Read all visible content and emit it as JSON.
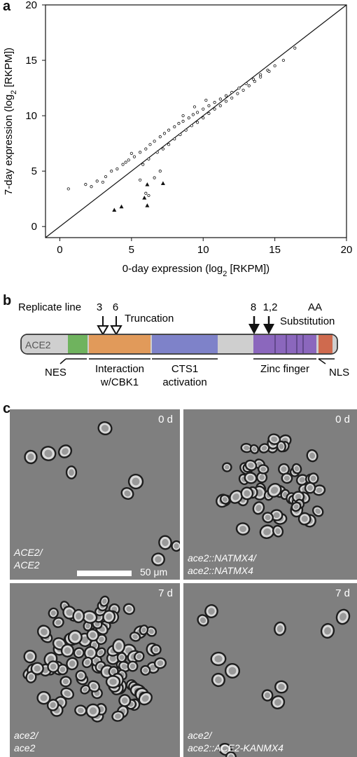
{
  "panel_a": {
    "letter": "a",
    "chart_data": {
      "type": "scatter",
      "xlabel": "0-day expression (log",
      "xlabel_sub": "2",
      "xlabel_tail": " [RKPM])",
      "ylabel": "7-day expression (log",
      "ylabel_sub": "2",
      "ylabel_tail": " [RKPM])",
      "xlim": [
        -1,
        20
      ],
      "ylim": [
        -1,
        20
      ],
      "x_ticks": [
        0,
        5,
        10,
        15,
        20
      ],
      "y_ticks": [
        0,
        5,
        10,
        15,
        20
      ],
      "identity_line": true,
      "series": [
        {
          "marker": "open-circle",
          "points": [
            [
              0.6,
              3.4
            ],
            [
              1.8,
              3.8
            ],
            [
              2.6,
              4.1
            ],
            [
              3.2,
              4.5
            ],
            [
              3.6,
              5.0
            ],
            [
              4.0,
              5.2
            ],
            [
              4.4,
              5.6
            ],
            [
              4.8,
              6.0
            ],
            [
              5.2,
              6.3
            ],
            [
              5.6,
              6.7
            ],
            [
              6.0,
              7.0
            ],
            [
              6.3,
              7.4
            ],
            [
              6.6,
              7.7
            ],
            [
              7.0,
              8.1
            ],
            [
              7.3,
              8.4
            ],
            [
              7.6,
              8.7
            ],
            [
              8.0,
              9.0
            ],
            [
              8.3,
              9.3
            ],
            [
              8.6,
              9.5
            ],
            [
              9.0,
              9.8
            ],
            [
              9.3,
              10.1
            ],
            [
              9.6,
              10.3
            ],
            [
              10.0,
              10.6
            ],
            [
              10.4,
              10.9
            ],
            [
              10.8,
              11.2
            ],
            [
              11.2,
              11.5
            ],
            [
              11.6,
              11.8
            ],
            [
              12.0,
              12.1
            ],
            [
              12.5,
              12.5
            ],
            [
              13.0,
              12.9
            ],
            [
              13.5,
              13.3
            ],
            [
              14.0,
              13.7
            ],
            [
              14.5,
              14.1
            ],
            [
              15.0,
              14.5
            ],
            [
              15.6,
              15.0
            ],
            [
              16.4,
              16.1
            ],
            [
              5.8,
              5.6
            ],
            [
              6.2,
              6.1
            ],
            [
              6.8,
              6.7
            ],
            [
              7.2,
              7.0
            ],
            [
              7.6,
              7.4
            ],
            [
              8.0,
              7.9
            ],
            [
              8.4,
              8.3
            ],
            [
              8.8,
              8.7
            ],
            [
              9.2,
              9.1
            ],
            [
              9.6,
              9.4
            ],
            [
              10.0,
              9.8
            ],
            [
              10.4,
              10.2
            ],
            [
              10.8,
              10.6
            ],
            [
              11.2,
              10.9
            ],
            [
              11.6,
              11.3
            ],
            [
              12.0,
              11.6
            ],
            [
              12.4,
              12.0
            ],
            [
              12.8,
              12.3
            ],
            [
              13.2,
              12.7
            ],
            [
              13.6,
              13.1
            ],
            [
              14.0,
              13.5
            ],
            [
              14.6,
              14.0
            ],
            [
              6.0,
              3.0
            ],
            [
              6.6,
              4.4
            ],
            [
              7.0,
              5.0
            ],
            [
              5.6,
              4.2
            ],
            [
              6.2,
              2.8
            ],
            [
              3.0,
              4.0
            ],
            [
              2.2,
              3.6
            ],
            [
              4.6,
              5.8
            ],
            [
              5.0,
              6.6
            ],
            [
              8.6,
              10.0
            ],
            [
              9.4,
              10.8
            ],
            [
              10.2,
              11.4
            ]
          ]
        },
        {
          "marker": "filled-triangle",
          "points": [
            [
              3.8,
              1.5
            ],
            [
              4.3,
              1.8
            ],
            [
              5.9,
              2.6
            ],
            [
              6.1,
              1.9
            ],
            [
              6.1,
              3.8
            ],
            [
              7.2,
              3.9
            ]
          ]
        }
      ]
    }
  },
  "panel_b": {
    "letter": "b",
    "replicate_line_label": "Replicate line",
    "truncation_label": "Truncation",
    "aa_label": "AA",
    "substitution_label": "Substitution",
    "markers": [
      {
        "label": "3",
        "style": "open"
      },
      {
        "label": "6",
        "style": "open"
      },
      {
        "label": "8",
        "style": "filled"
      },
      {
        "label": "1,2",
        "style": "filled"
      }
    ],
    "gene_label": "ACE2",
    "domains": [
      {
        "label": "NES",
        "color": "#6fb35e"
      },
      {
        "label_lines": [
          "Interaction",
          "w/CBK1"
        ],
        "color": "#e19a5a"
      },
      {
        "label_lines": [
          "CTS1",
          "activation"
        ],
        "color": "#7e82c9"
      },
      {
        "label": "Zinc finger",
        "color": "#8b67bd"
      },
      {
        "label": "NLS",
        "color": "#cf6a4e"
      }
    ],
    "bar_base_color": "#cccccc"
  },
  "panel_c": {
    "letter": "c",
    "scale_bar_label": "50 μm",
    "images": [
      {
        "time": "0 d",
        "genotype_lines": [
          "ACE2/",
          "ACE2"
        ]
      },
      {
        "time": "0 d",
        "genotype_lines": [
          "ace2::NATMX4/",
          "ace2::NATMX4"
        ]
      },
      {
        "time": "7 d",
        "genotype_lines": [
          "ace2/",
          "ace2"
        ]
      },
      {
        "time": "7 d",
        "genotype_lines": [
          "ace2/",
          "ace2::ACE2-KANMX4"
        ]
      }
    ]
  }
}
